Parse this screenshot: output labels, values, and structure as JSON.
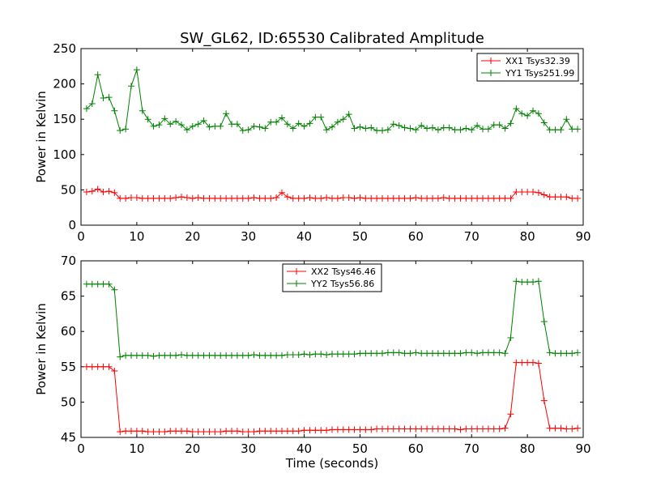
{
  "figure": {
    "title": "SW_GL62, ID:65530 Calibrated Amplitude"
  },
  "colors": {
    "xx": "#ff0000",
    "yy": "#008000"
  },
  "chart_data": [
    {
      "type": "line",
      "title": "SW_GL62, ID:65530 Calibrated Amplitude",
      "xlabel": "",
      "ylabel": "Power in Kelvin",
      "xlim": [
        0,
        90
      ],
      "ylim": [
        0,
        250
      ],
      "xticks": [
        "0",
        "10",
        "20",
        "30",
        "40",
        "50",
        "60",
        "70",
        "80",
        "90"
      ],
      "yticks": [
        "0",
        "50",
        "100",
        "150",
        "200",
        "250"
      ],
      "legend_position": "top-right",
      "x": [
        1,
        2,
        3,
        4,
        5,
        6,
        7,
        8,
        9,
        10,
        11,
        12,
        13,
        14,
        15,
        16,
        17,
        18,
        19,
        20,
        21,
        22,
        23,
        24,
        25,
        26,
        27,
        28,
        29,
        30,
        31,
        32,
        33,
        34,
        35,
        36,
        37,
        38,
        39,
        40,
        41,
        42,
        43,
        44,
        45,
        46,
        47,
        48,
        49,
        50,
        51,
        52,
        53,
        54,
        55,
        56,
        57,
        58,
        59,
        60,
        61,
        62,
        63,
        64,
        65,
        66,
        67,
        68,
        69,
        70,
        71,
        72,
        73,
        74,
        75,
        76,
        77,
        78,
        79,
        80,
        81,
        82,
        83,
        84,
        85,
        86,
        87,
        88,
        89
      ],
      "series": [
        {
          "name": "XX1 Tsys32.39",
          "color": "#ff0000",
          "values": [
            47,
            48,
            51,
            47,
            48,
            46,
            38,
            38,
            39,
            39,
            38,
            38,
            38,
            38,
            38,
            38,
            39,
            40,
            39,
            38,
            39,
            38,
            38,
            38,
            38,
            38,
            38,
            38,
            38,
            38,
            39,
            38,
            38,
            38,
            39,
            46,
            40,
            38,
            38,
            38,
            39,
            38,
            38,
            39,
            38,
            38,
            39,
            39,
            38,
            39,
            38,
            38,
            38,
            38,
            38,
            38,
            38,
            38,
            38,
            39,
            38,
            38,
            38,
            38,
            39,
            38,
            38,
            38,
            38,
            38,
            38,
            38,
            38,
            38,
            38,
            38,
            38,
            47,
            47,
            47,
            47,
            46,
            43,
            40,
            40,
            40,
            40,
            38,
            38
          ]
        },
        {
          "name": "YY1 Tsys251.99",
          "color": "#008000",
          "values": [
            165,
            172,
            213,
            180,
            181,
            162,
            134,
            136,
            197,
            220,
            162,
            150,
            140,
            142,
            151,
            143,
            147,
            142,
            135,
            140,
            143,
            148,
            139,
            140,
            140,
            158,
            143,
            143,
            134,
            135,
            140,
            139,
            137,
            146,
            146,
            152,
            143,
            137,
            144,
            140,
            144,
            153,
            153,
            135,
            139,
            146,
            150,
            157,
            137,
            139,
            137,
            138,
            134,
            134,
            135,
            143,
            141,
            138,
            137,
            135,
            141,
            137,
            138,
            135,
            138,
            138,
            135,
            135,
            137,
            135,
            141,
            136,
            136,
            142,
            142,
            137,
            144,
            165,
            158,
            155,
            162,
            158,
            145,
            135,
            135,
            135,
            150,
            136,
            136
          ]
        }
      ]
    },
    {
      "type": "line",
      "title": "",
      "xlabel": "Time (seconds)",
      "ylabel": "Power in Kelvin",
      "xlim": [
        0,
        90
      ],
      "ylim": [
        45,
        70
      ],
      "xticks": [
        "0",
        "10",
        "20",
        "30",
        "40",
        "50",
        "60",
        "70",
        "80",
        "90"
      ],
      "yticks": [
        "45",
        "50",
        "55",
        "60",
        "65",
        "70"
      ],
      "legend_position": "upper-center",
      "x": [
        1,
        2,
        3,
        4,
        5,
        6,
        7,
        8,
        9,
        10,
        11,
        12,
        13,
        14,
        15,
        16,
        17,
        18,
        19,
        20,
        21,
        22,
        23,
        24,
        25,
        26,
        27,
        28,
        29,
        30,
        31,
        32,
        33,
        34,
        35,
        36,
        37,
        38,
        39,
        40,
        41,
        42,
        43,
        44,
        45,
        46,
        47,
        48,
        49,
        50,
        51,
        52,
        53,
        54,
        55,
        56,
        57,
        58,
        59,
        60,
        61,
        62,
        63,
        64,
        65,
        66,
        67,
        68,
        69,
        70,
        71,
        72,
        73,
        74,
        75,
        76,
        77,
        78,
        79,
        80,
        81,
        82,
        83,
        84,
        85,
        86,
        87,
        88,
        89
      ],
      "series": [
        {
          "name": "XX2 Tsys46.46",
          "color": "#ff0000",
          "values": [
            55.0,
            55.0,
            55.0,
            55.0,
            55.0,
            54.4,
            45.8,
            45.9,
            45.9,
            45.9,
            45.9,
            45.8,
            45.8,
            45.8,
            45.8,
            45.9,
            45.9,
            45.9,
            45.9,
            45.8,
            45.8,
            45.8,
            45.8,
            45.8,
            45.8,
            45.9,
            45.9,
            45.9,
            45.8,
            45.8,
            45.8,
            45.9,
            45.9,
            45.9,
            45.9,
            45.9,
            45.9,
            45.9,
            45.9,
            46.0,
            46.0,
            46.0,
            46.0,
            46.0,
            46.1,
            46.1,
            46.1,
            46.1,
            46.1,
            46.1,
            46.1,
            46.1,
            46.2,
            46.2,
            46.2,
            46.2,
            46.2,
            46.2,
            46.2,
            46.2,
            46.2,
            46.2,
            46.2,
            46.2,
            46.2,
            46.2,
            46.2,
            46.1,
            46.2,
            46.2,
            46.2,
            46.2,
            46.2,
            46.2,
            46.2,
            46.3,
            48.3,
            55.6,
            55.6,
            55.6,
            55.6,
            55.5,
            50.2,
            46.3,
            46.3,
            46.3,
            46.2,
            46.2,
            46.3
          ]
        },
        {
          "name": "YY2 Tsys56.86",
          "color": "#008000",
          "values": [
            66.7,
            66.7,
            66.7,
            66.7,
            66.7,
            65.9,
            56.4,
            56.6,
            56.6,
            56.6,
            56.6,
            56.6,
            56.5,
            56.6,
            56.6,
            56.6,
            56.6,
            56.7,
            56.6,
            56.6,
            56.6,
            56.6,
            56.6,
            56.6,
            56.6,
            56.6,
            56.6,
            56.6,
            56.6,
            56.6,
            56.7,
            56.6,
            56.6,
            56.6,
            56.6,
            56.6,
            56.7,
            56.7,
            56.7,
            56.8,
            56.7,
            56.8,
            56.8,
            56.7,
            56.8,
            56.8,
            56.8,
            56.8,
            56.8,
            56.9,
            56.9,
            56.9,
            56.9,
            56.9,
            57.0,
            57.0,
            57.0,
            56.9,
            56.9,
            57.0,
            56.9,
            56.9,
            56.9,
            56.9,
            56.9,
            56.9,
            56.9,
            56.9,
            57.0,
            57.0,
            56.9,
            57.0,
            57.0,
            57.0,
            57.0,
            56.9,
            59.1,
            67.1,
            67.0,
            67.0,
            67.0,
            67.1,
            61.4,
            57.0,
            56.9,
            56.9,
            56.9,
            56.9,
            57.0
          ]
        }
      ]
    }
  ]
}
